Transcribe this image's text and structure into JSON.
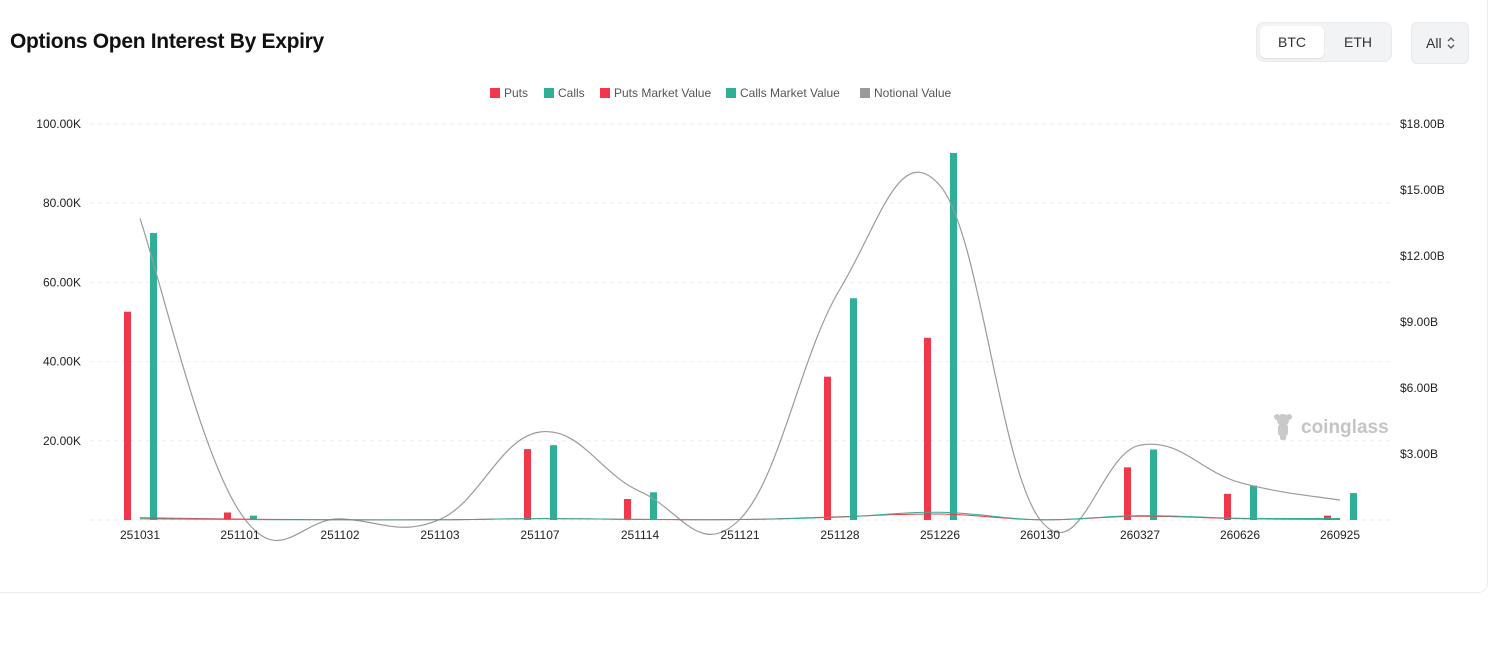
{
  "header": {
    "title": "Options Open Interest By Expiry"
  },
  "coin_toggle": {
    "options": [
      "BTC",
      "ETH"
    ],
    "selected": "BTC"
  },
  "range_select": {
    "value": "All"
  },
  "watermark": "coinglass",
  "colors": {
    "puts": "#f0384a",
    "calls": "#2eaf96",
    "notional": "#9a9a9a",
    "grid": "#eeeeee"
  },
  "chart_data": {
    "type": "bar",
    "categories": [
      "251031",
      "251101",
      "251102",
      "251103",
      "251107",
      "251114",
      "251121",
      "251128",
      "251226",
      "260130",
      "260327",
      "260626",
      "260925"
    ],
    "legend": [
      "Puts",
      "Calls",
      "Puts Market Value",
      "Calls Market Value",
      "Notional Value"
    ],
    "legend_position": "top-center",
    "yaxis_left": {
      "ticks": [
        "20.00K",
        "40.00K",
        "60.00K",
        "80.00K",
        "100.00K"
      ],
      "range": [
        0,
        100000
      ]
    },
    "yaxis_right": {
      "ticks": [
        "$3.00B",
        "$6.00B",
        "$9.00B",
        "$12.00B",
        "$15.00B",
        "$18.00B"
      ],
      "range": [
        0,
        18000000000
      ]
    },
    "grid": true,
    "series": [
      {
        "name": "Puts",
        "axis": "left",
        "values": [
          52600,
          1900,
          0,
          0,
          17900,
          5300,
          0,
          36200,
          46000,
          0,
          13300,
          6600,
          1100
        ]
      },
      {
        "name": "Calls",
        "axis": "left",
        "values": [
          72500,
          1100,
          0,
          0,
          18900,
          7000,
          0,
          56000,
          92700,
          0,
          17800,
          8700,
          6800
        ]
      },
      {
        "name": "Puts Market Value",
        "axis": "right",
        "values": [
          100000000,
          40000000,
          10000000,
          10000000,
          60000000,
          30000000,
          20000000,
          150000000,
          270000000,
          10000000,
          170000000,
          60000000,
          30000000
        ]
      },
      {
        "name": "Calls Market Value",
        "axis": "right",
        "values": [
          50000000,
          20000000,
          10000000,
          10000000,
          60000000,
          30000000,
          20000000,
          130000000,
          350000000,
          10000000,
          200000000,
          80000000,
          70000000
        ]
      },
      {
        "name": "Notional Value",
        "axis": "right",
        "values": [
          13700000000,
          350000000,
          50000000,
          30000000,
          4000000000,
          1300000000,
          40000000,
          10500000000,
          15200000000,
          20000000,
          3400000000,
          1700000000,
          900000000
        ]
      }
    ]
  }
}
